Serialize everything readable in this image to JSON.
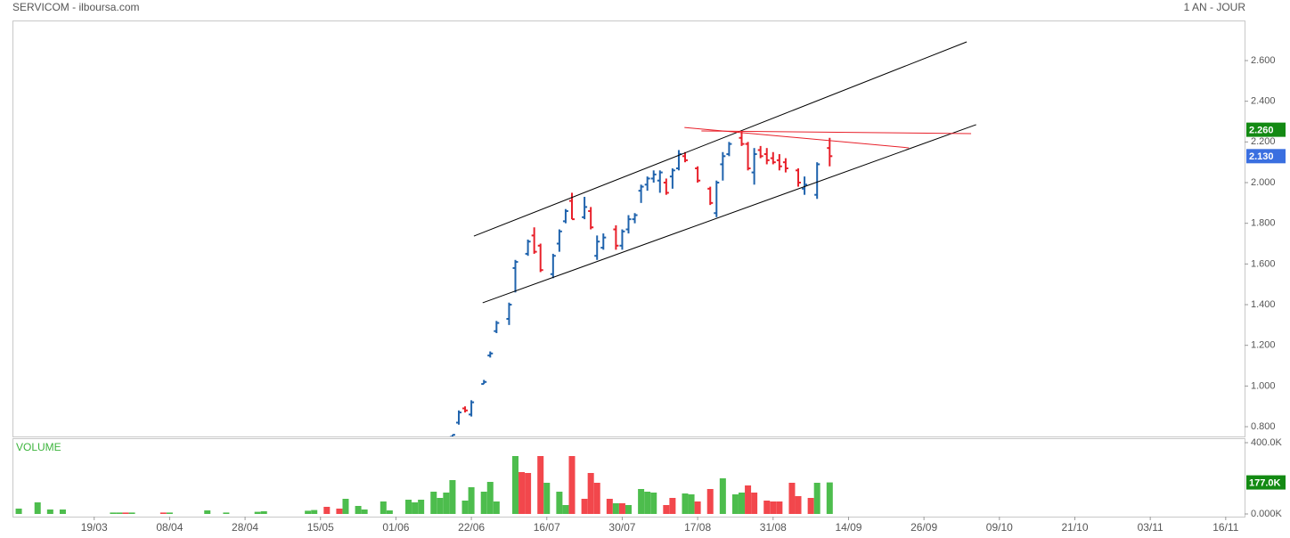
{
  "header": {
    "title": "SERVICOM - ilboursa.com",
    "period": "1 AN - JOUR"
  },
  "chart_data": [
    {
      "type": "ohlc",
      "xlim": [
        0,
        196
      ],
      "ylim": [
        0.752,
        2.797
      ],
      "yticks": [
        {
          "value": 0.8,
          "label": "0.800"
        },
        {
          "value": 1.0,
          "label": "1.000"
        },
        {
          "value": 1.2,
          "label": "1.200"
        },
        {
          "value": 1.4,
          "label": "1.400"
        },
        {
          "value": 1.6,
          "label": "1.600"
        },
        {
          "value": 1.8,
          "label": "1.800"
        },
        {
          "value": 2.0,
          "label": "2.000"
        },
        {
          "value": 2.2,
          "label": "2.200"
        },
        {
          "value": 2.4,
          "label": "2.400"
        },
        {
          "value": 2.6,
          "label": "2.600"
        }
      ],
      "up_color": "#1f63ad",
      "down_color": "#e8202a",
      "x": [
        70,
        71,
        72,
        73,
        75,
        76,
        77,
        79,
        80,
        82,
        83,
        84,
        86,
        87,
        88,
        89,
        91,
        92,
        93,
        94,
        96,
        97,
        98,
        99,
        100,
        101,
        102,
        103,
        104,
        105,
        106,
        107,
        109,
        111,
        112,
        113,
        114,
        116,
        117,
        118,
        119,
        120,
        121,
        122,
        123,
        125,
        126,
        128,
        130
      ],
      "open": [
        0.75,
        0.82,
        0.89,
        0.86,
        1.01,
        1.15,
        1.27,
        1.33,
        1.58,
        1.65,
        1.74,
        1.69,
        1.55,
        1.7,
        1.81,
        1.91,
        1.83,
        1.86,
        1.64,
        1.68,
        1.77,
        1.69,
        1.77,
        1.82,
        1.96,
        1.99,
        2.02,
        2.01,
        2.0,
        2.03,
        2.07,
        2.13,
        2.07,
        1.97,
        1.85,
        2.09,
        2.14,
        2.22,
        2.19,
        2.05,
        2.16,
        2.14,
        2.12,
        2.11,
        2.1,
        2.06,
        1.97,
        1.94,
        2.17
      ],
      "high": [
        0.76,
        0.88,
        0.9,
        0.93,
        1.03,
        1.17,
        1.32,
        1.41,
        1.62,
        1.72,
        1.78,
        1.7,
        1.65,
        1.77,
        1.87,
        1.95,
        1.93,
        1.88,
        1.74,
        1.75,
        1.79,
        1.77,
        1.84,
        1.85,
        1.99,
        2.03,
        2.06,
        2.06,
        2.02,
        2.07,
        2.16,
        2.15,
        2.08,
        1.98,
        2.01,
        2.15,
        2.2,
        2.25,
        2.2,
        2.17,
        2.18,
        2.17,
        2.15,
        2.14,
        2.12,
        2.07,
        2.03,
        2.1,
        2.22
      ],
      "low": [
        0.75,
        0.81,
        0.87,
        0.85,
        1.01,
        1.14,
        1.26,
        1.3,
        1.46,
        1.64,
        1.65,
        1.56,
        1.53,
        1.66,
        1.8,
        1.82,
        1.82,
        1.77,
        1.62,
        1.67,
        1.67,
        1.67,
        1.75,
        1.8,
        1.9,
        1.96,
        2.0,
        1.95,
        1.94,
        1.97,
        2.06,
        2.1,
        2.0,
        1.89,
        1.83,
        2.01,
        2.13,
        2.18,
        2.06,
        1.99,
        2.12,
        2.09,
        2.09,
        2.06,
        2.05,
        1.98,
        1.94,
        1.92,
        2.08
      ],
      "close": [
        0.76,
        0.87,
        0.88,
        0.92,
        1.02,
        1.16,
        1.31,
        1.4,
        1.61,
        1.71,
        1.66,
        1.57,
        1.64,
        1.76,
        1.86,
        1.82,
        1.88,
        1.78,
        1.71,
        1.73,
        1.69,
        1.76,
        1.82,
        1.84,
        1.98,
        2.02,
        2.04,
        2.05,
        1.95,
        2.06,
        2.14,
        2.11,
        2.01,
        1.9,
        2.0,
        2.13,
        2.19,
        2.19,
        2.07,
        2.14,
        2.13,
        2.11,
        2.1,
        2.08,
        2.07,
        2.0,
        1.99,
        2.09,
        2.13
      ],
      "trendlines": [
        {
          "color": "#000000",
          "x": [
            73.4,
            151.8
          ],
          "y": [
            1.737,
            2.692
          ]
        },
        {
          "color": "#000000",
          "x": [
            74.8,
            153.3
          ],
          "y": [
            1.409,
            2.285
          ]
        },
        {
          "color": "#e8202a",
          "x": [
            106.9,
            142.6
          ],
          "y": [
            2.271,
            2.171
          ]
        },
        {
          "color": "#e8202a",
          "x": [
            109.6,
            152.5
          ],
          "y": [
            2.254,
            2.241
          ]
        }
      ],
      "badges": [
        {
          "value": 2.26,
          "label": "2.260",
          "color": "#138a13"
        },
        {
          "value": 2.13,
          "label": "2.130",
          "color": "#3a6fe0"
        }
      ]
    },
    {
      "type": "bar",
      "title": "VOLUME",
      "title_color": "#3cb43c",
      "xlim": [
        0,
        196
      ],
      "ylim": [
        -15000,
        425000
      ],
      "yticks": [
        {
          "value": 0,
          "label": "0.000K"
        },
        {
          "value": 400000,
          "label": "400.0K"
        }
      ],
      "xticks": [
        {
          "value": 13,
          "label": "19/03"
        },
        {
          "value": 25,
          "label": "08/04"
        },
        {
          "value": 37,
          "label": "28/04"
        },
        {
          "value": 49,
          "label": "15/05"
        },
        {
          "value": 61,
          "label": "01/06"
        },
        {
          "value": 73,
          "label": "22/06"
        },
        {
          "value": 85,
          "label": "16/07"
        },
        {
          "value": 97,
          "label": "30/07"
        },
        {
          "value": 109,
          "label": "17/08"
        },
        {
          "value": 121,
          "label": "31/08"
        },
        {
          "value": 133,
          "label": "14/09"
        },
        {
          "value": 145,
          "label": "26/09"
        },
        {
          "value": 157,
          "label": "09/10"
        },
        {
          "value": 169,
          "label": "21/10"
        },
        {
          "value": 181,
          "label": "03/11"
        },
        {
          "value": 193,
          "label": "16/11"
        }
      ],
      "x": [
        1,
        4,
        6,
        8,
        16,
        17,
        18,
        19,
        24,
        25,
        31,
        34,
        39,
        40,
        47,
        48,
        50,
        52,
        53,
        55,
        56,
        59,
        60,
        63,
        64,
        65,
        67,
        68,
        69,
        70,
        72,
        73,
        75,
        76,
        77,
        80,
        81,
        82,
        84,
        85,
        87,
        88,
        89,
        91,
        92,
        93,
        95,
        96,
        97,
        98,
        100,
        101,
        102,
        104,
        105,
        107,
        108,
        109,
        111,
        113,
        115,
        116,
        117,
        118,
        120,
        121,
        122,
        124,
        125,
        127,
        128,
        130
      ],
      "values": [
        30000,
        65000,
        25000,
        25000,
        8000,
        8000,
        8000,
        8000,
        8000,
        8000,
        20000,
        8000,
        12000,
        15000,
        18000,
        22000,
        40000,
        30000,
        85000,
        45000,
        25000,
        70000,
        20000,
        80000,
        65000,
        80000,
        125000,
        90000,
        120000,
        190000,
        75000,
        150000,
        125000,
        180000,
        70000,
        325000,
        235000,
        230000,
        325000,
        175000,
        125000,
        50000,
        325000,
        85000,
        230000,
        175000,
        85000,
        60000,
        60000,
        50000,
        140000,
        125000,
        120000,
        50000,
        90000,
        115000,
        110000,
        70000,
        140000,
        200000,
        110000,
        120000,
        160000,
        120000,
        75000,
        70000,
        70000,
        175000,
        100000,
        90000,
        175000,
        177000
      ],
      "colors": [
        "#4dbd4d",
        "#4dbd4d",
        "#4dbd4d",
        "#4dbd4d",
        "#4dbd4d",
        "#4dbd4d",
        "#f2474c",
        "#4dbd4d",
        "#f2474c",
        "#4dbd4d",
        "#4dbd4d",
        "#4dbd4d",
        "#4dbd4d",
        "#4dbd4d",
        "#4dbd4d",
        "#4dbd4d",
        "#f2474c",
        "#f2474c",
        "#4dbd4d",
        "#4dbd4d",
        "#4dbd4d",
        "#4dbd4d",
        "#4dbd4d",
        "#4dbd4d",
        "#4dbd4d",
        "#4dbd4d",
        "#4dbd4d",
        "#4dbd4d",
        "#4dbd4d",
        "#4dbd4d",
        "#4dbd4d",
        "#4dbd4d",
        "#4dbd4d",
        "#4dbd4d",
        "#4dbd4d",
        "#4dbd4d",
        "#f2474c",
        "#f2474c",
        "#f2474c",
        "#4dbd4d",
        "#4dbd4d",
        "#4dbd4d",
        "#f2474c",
        "#f2474c",
        "#f2474c",
        "#f2474c",
        "#f2474c",
        "#4dbd4d",
        "#f2474c",
        "#4dbd4d",
        "#4dbd4d",
        "#4dbd4d",
        "#4dbd4d",
        "#f2474c",
        "#f2474c",
        "#4dbd4d",
        "#4dbd4d",
        "#f2474c",
        "#f2474c",
        "#4dbd4d",
        "#4dbd4d",
        "#4dbd4d",
        "#f2474c",
        "#f2474c",
        "#f2474c",
        "#f2474c",
        "#f2474c",
        "#f2474c",
        "#f2474c",
        "#f2474c",
        "#4dbd4d",
        "#4dbd4d"
      ],
      "badges": [
        {
          "value": 177000,
          "label": "177.0K",
          "color": "#138a13"
        }
      ]
    }
  ]
}
